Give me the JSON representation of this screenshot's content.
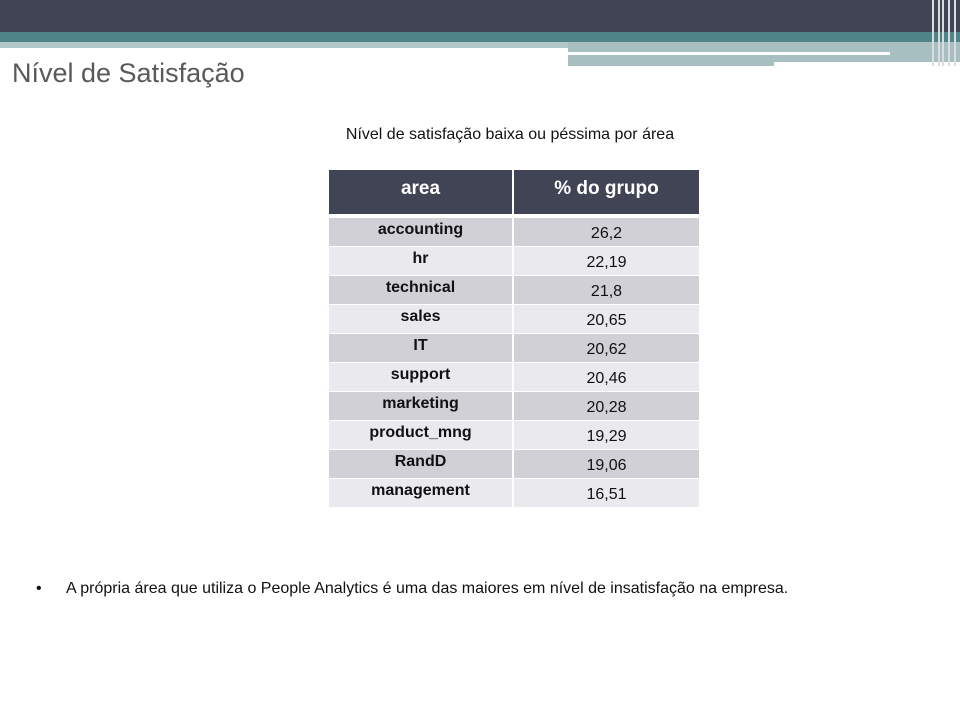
{
  "slide": {
    "title": "Nível de Satisfação"
  },
  "table": {
    "caption": "Nível de satisfação baixa ou péssima por área",
    "headers": [
      "area",
      "% do grupo"
    ],
    "rows": [
      {
        "area": "accounting",
        "value": "26,2"
      },
      {
        "area": "hr",
        "value": "22,19"
      },
      {
        "area": "technical",
        "value": "21,8"
      },
      {
        "area": "sales",
        "value": "20,65"
      },
      {
        "area": "IT",
        "value": "20,62"
      },
      {
        "area": "support",
        "value": "20,46"
      },
      {
        "area": "marketing",
        "value": "20,28"
      },
      {
        "area": "product_mng",
        "value": "19,29"
      },
      {
        "area": "RandD",
        "value": "19,06"
      },
      {
        "area": "management",
        "value": "16,51"
      }
    ]
  },
  "bullets": [
    {
      "marker": "•",
      "text": "A própria área que utiliza o People Analytics é uma das maiores em nível de insatisfação na empresa."
    }
  ],
  "colors": {
    "header_dark": "#414455",
    "header_teal": "#4f8588",
    "header_light": "#a8bfc2",
    "row_odd": "#d0d0d6",
    "row_even": "#e9e9ee",
    "title_text": "#595959"
  }
}
